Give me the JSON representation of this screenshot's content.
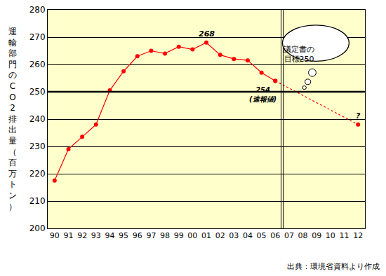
{
  "chart_data": {
    "type": "line",
    "y_label": "運輸部門のCO2排出量（百万トン）",
    "categories": [
      "90",
      "91",
      "92",
      "93",
      "94",
      "95",
      "96",
      "97",
      "98",
      "99",
      "00",
      "01",
      "02",
      "03",
      "04",
      "05",
      "06",
      "07",
      "08",
      "09",
      "10",
      "11",
      "12"
    ],
    "series": [
      {
        "color": "#ff0000",
        "marker": "circle",
        "line_style": "solid",
        "values": [
          217.5,
          229,
          233.5,
          238,
          250.5,
          257.5,
          263,
          265,
          264,
          266.5,
          265.5,
          268,
          263.5,
          262,
          261.5,
          257,
          254,
          null,
          null,
          null,
          null,
          null,
          null
        ]
      },
      {
        "color": "#ff0000",
        "marker": "circle",
        "line_style": "dotted",
        "values": [
          null,
          null,
          null,
          null,
          null,
          null,
          null,
          null,
          null,
          null,
          null,
          null,
          null,
          null,
          null,
          null,
          254,
          null,
          null,
          null,
          null,
          null,
          238
        ]
      }
    ],
    "ylim": [
      200,
      280
    ],
    "yticks": [
      200,
      210,
      220,
      230,
      240,
      250,
      260,
      270,
      280
    ],
    "grid": true,
    "annotations": [
      {
        "category": "01",
        "value": 268,
        "text": "268"
      },
      {
        "category": "06",
        "value": 254,
        "text": "254\n(速報値)"
      },
      {
        "category": "12",
        "value": 238,
        "text": "?"
      }
    ],
    "target": {
      "value": 250,
      "text": "議定書の\n目標250"
    },
    "forecast_start": "07",
    "source": "出典：環境省資料より作成"
  }
}
